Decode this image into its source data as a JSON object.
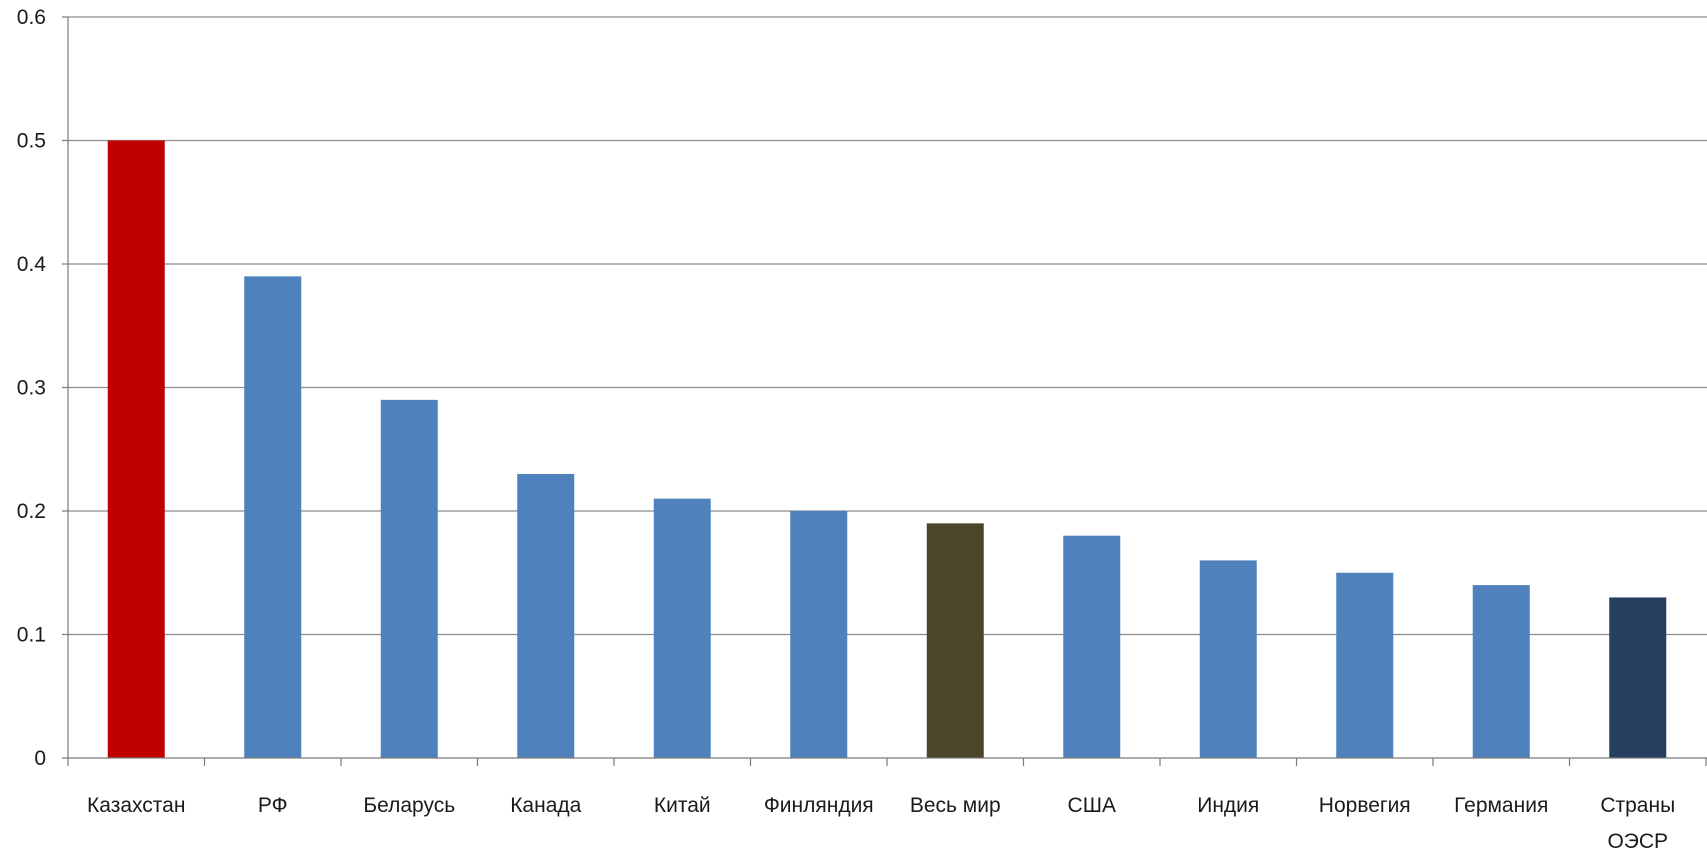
{
  "chart_data": {
    "type": "bar",
    "title": "",
    "xlabel": "",
    "ylabel": "",
    "ylim": [
      0,
      0.6
    ],
    "yticks": [
      "0",
      "0.1",
      "0.2",
      "0.3",
      "0.4",
      "0.5",
      "0.6"
    ],
    "grid": true,
    "legend": "none",
    "categories": [
      [
        "Казахстан"
      ],
      [
        "РФ"
      ],
      [
        "Беларусь"
      ],
      [
        "Канада"
      ],
      [
        "Китай"
      ],
      [
        "Финляндия"
      ],
      [
        "Весь мир"
      ],
      [
        "США"
      ],
      [
        "Индия"
      ],
      [
        "Норвегия"
      ],
      [
        "Германия"
      ],
      [
        "Страны",
        "ОЭСР"
      ]
    ],
    "values": [
      0.5,
      0.39,
      0.29,
      0.23,
      0.21,
      0.2,
      0.19,
      0.18,
      0.16,
      0.15,
      0.14,
      0.13
    ],
    "colors": [
      "#C00000",
      "#4F81BD",
      "#4F81BD",
      "#4F81BD",
      "#4F81BD",
      "#4F81BD",
      "#4B452A",
      "#4F81BD",
      "#4F81BD",
      "#4F81BD",
      "#4F81BD",
      "#243F60"
    ]
  }
}
